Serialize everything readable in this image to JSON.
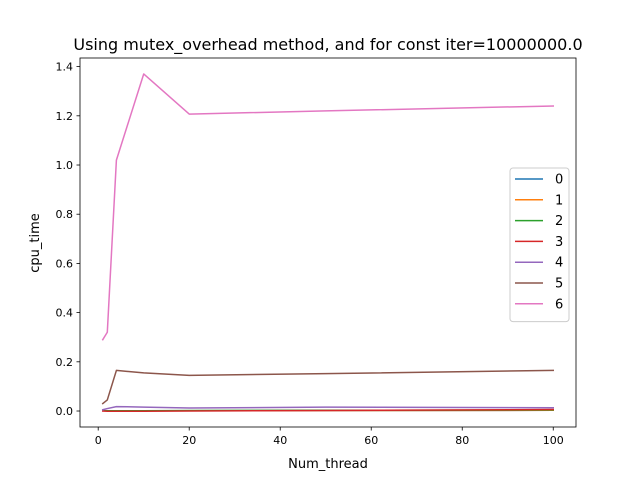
{
  "chart_data": {
    "type": "line",
    "title": "Using mutex_overhead method, and for const iter=10000000.0",
    "xlabel": "Num_thread",
    "ylabel": "cpu_time",
    "xlim": [
      -4,
      105
    ],
    "ylim": [
      -0.065,
      1.435
    ],
    "xticks": [
      0,
      20,
      40,
      60,
      80,
      100
    ],
    "yticks": [
      0.0,
      0.2,
      0.4,
      0.6,
      0.8,
      1.0,
      1.2,
      1.4
    ],
    "xtick_labels": [
      "0",
      "20",
      "40",
      "60",
      "80",
      "100"
    ],
    "ytick_labels": [
      "0.0",
      "0.2",
      "0.4",
      "0.6",
      "0.8",
      "1.0",
      "1.2",
      "1.4"
    ],
    "grid": false,
    "legend": {
      "placement": "center-right"
    },
    "x": [
      1,
      2,
      4,
      10,
      20,
      50,
      100
    ],
    "series": [
      {
        "name": "0",
        "color": "#1f77b4",
        "values": [
          0.001,
          0.001,
          0.001,
          0.001,
          0.001,
          0.002,
          0.003
        ]
      },
      {
        "name": "1",
        "color": "#ff7f0e",
        "values": [
          0.001,
          0.001,
          0.001,
          0.001,
          0.001,
          0.002,
          0.003
        ]
      },
      {
        "name": "2",
        "color": "#2ca02c",
        "values": [
          0.001,
          0.001,
          0.001,
          0.001,
          0.002,
          0.003,
          0.004
        ]
      },
      {
        "name": "3",
        "color": "#d62728",
        "values": [
          0.0,
          -0.001,
          -0.001,
          -0.001,
          0.0,
          0.002,
          0.006
        ]
      },
      {
        "name": "4",
        "color": "#9467bd",
        "values": [
          0.005,
          0.01,
          0.018,
          0.016,
          0.012,
          0.016,
          0.013
        ]
      },
      {
        "name": "5",
        "color": "#8c564b",
        "values": [
          0.03,
          0.045,
          0.165,
          0.155,
          0.145,
          0.152,
          0.165
        ]
      },
      {
        "name": "6",
        "color": "#e377c2",
        "values": [
          0.29,
          0.32,
          1.02,
          1.37,
          1.207,
          1.22,
          1.24
        ]
      }
    ]
  }
}
